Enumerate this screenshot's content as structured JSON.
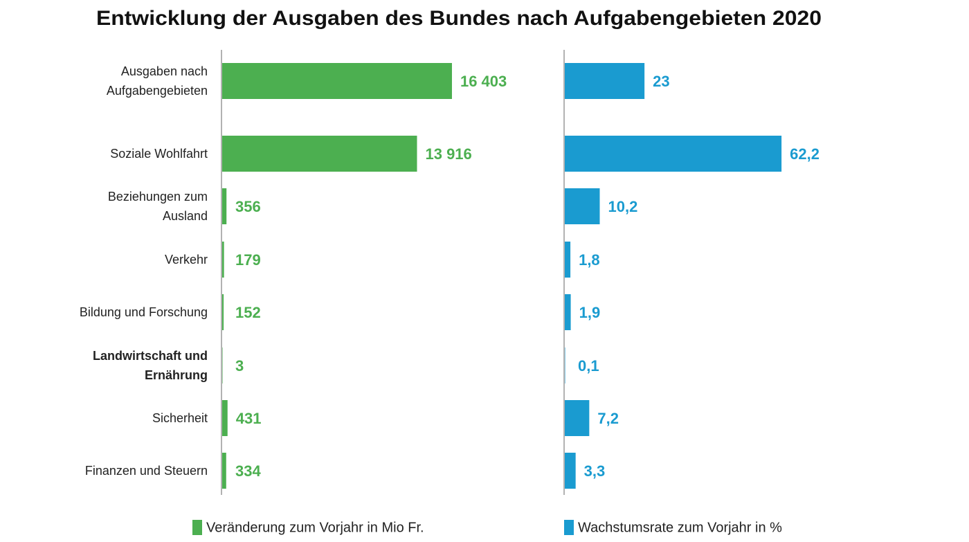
{
  "chart_data": [
    {
      "type": "hbar",
      "title": "Entwicklung der Ausgaben des Bundes nach Aufgabengebieten 2020",
      "categories": [
        "Ausgaben nach Aufgabengebieten",
        "Soziale Wohlfahrt",
        "Beziehungen zum Ausland",
        "Verkehr",
        "Bildung und Forschung",
        "Landwirtschaft und Ernährung",
        "Sicherheit",
        "Finanzen und Steuern"
      ],
      "highlight_index": 5,
      "xlim": [
        0,
        20000
      ],
      "series": [
        {
          "name": "Veränderung zum Vorjahr in Mio Fr.",
          "color": "#4caf50",
          "values": [
            16403,
            13916,
            356,
            179,
            152,
            3,
            431,
            334
          ],
          "value_labels": [
            "16 403",
            "13 916",
            "356",
            "179",
            "152",
            "3",
            "431",
            "334"
          ]
        }
      ]
    },
    {
      "type": "hbar",
      "xlim": [
        0,
        80
      ],
      "series": [
        {
          "name": "Wachstumsrate zum Vorjahr in %",
          "color": "#1a9bd0",
          "values": [
            23,
            62.2,
            10.2,
            1.8,
            1.9,
            0.1,
            7.2,
            3.3
          ],
          "value_labels": [
            "23",
            "62,2",
            "10,2",
            "1,8",
            "1,9",
            "0,1",
            "7,2",
            "3,3"
          ]
        }
      ]
    }
  ]
}
